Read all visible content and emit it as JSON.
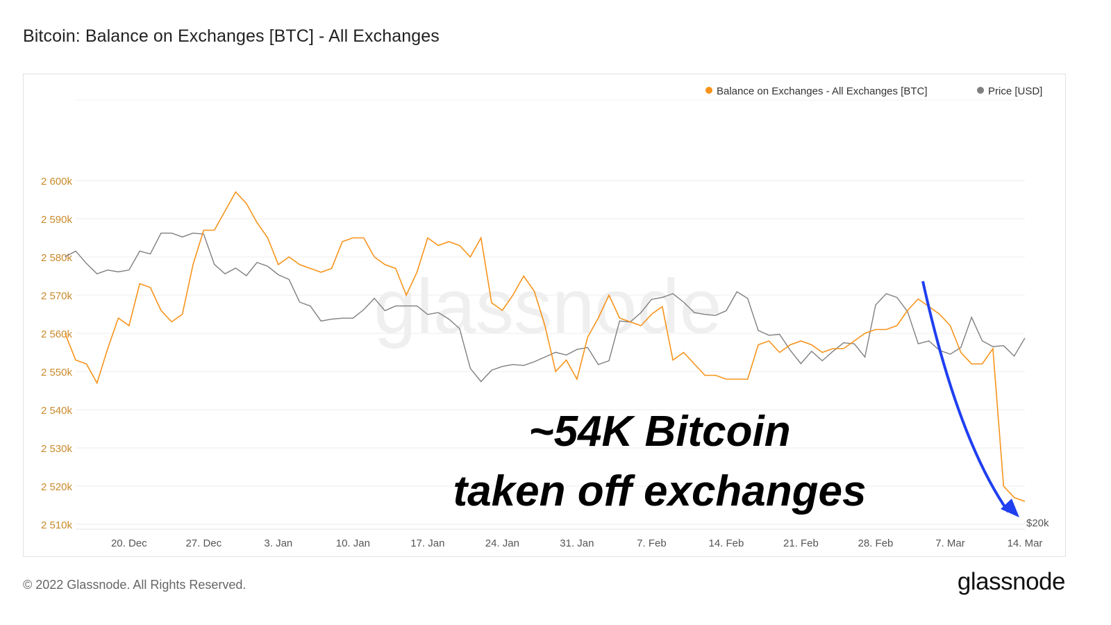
{
  "page": {
    "title": "Bitcoin: Balance on Exchanges [BTC] - All Exchanges",
    "footer_copyright": "© 2022 Glassnode. All Rights Reserved.",
    "footer_logo": "glassnode",
    "watermark": "glassnode"
  },
  "chart_data": {
    "type": "line",
    "title": "Bitcoin: Balance on Exchanges [BTC] - All Exchanges",
    "x_ticks": [
      "20. Dec",
      "27. Dec",
      "3. Jan",
      "10. Jan",
      "17. Jan",
      "24. Jan",
      "31. Jan",
      "7. Feb",
      "14. Feb",
      "21. Feb",
      "28. Feb",
      "7. Mar",
      "14. Mar"
    ],
    "y_ticks": [
      "2 510k",
      "2 520k",
      "2 530k",
      "2 540k",
      "2 550k",
      "2 560k",
      "2 570k",
      "2 580k",
      "2 590k",
      "2 600k"
    ],
    "y_right_label": "$20k",
    "ylim": [
      2510000,
      2610000
    ],
    "grid": true,
    "legend_position": "top-right",
    "x_start": "2021-12-15",
    "x_end": "2022-03-14",
    "annotation": {
      "line1": "~54K Bitcoin",
      "line2": "taken off exchanges"
    },
    "colors": {
      "balance": "#f7931a",
      "price": "#7f7f7f",
      "arrow": "#1f3ff0",
      "axis_text": "#c98a2b"
    },
    "series": [
      {
        "name": "Balance on Exchanges - All Exchanges [BTC]",
        "axis": "left",
        "points": [
          [
            "2021-12-14",
            2560000
          ],
          [
            "2021-12-15",
            2553000
          ],
          [
            "2021-12-16",
            2552000
          ],
          [
            "2021-12-17",
            2547000
          ],
          [
            "2021-12-18",
            2556000
          ],
          [
            "2021-12-19",
            2564000
          ],
          [
            "2021-12-20",
            2562000
          ],
          [
            "2021-12-21",
            2573000
          ],
          [
            "2021-12-22",
            2572000
          ],
          [
            "2021-12-23",
            2566000
          ],
          [
            "2021-12-24",
            2563000
          ],
          [
            "2021-12-25",
            2565000
          ],
          [
            "2021-12-26",
            2578000
          ],
          [
            "2021-12-27",
            2587000
          ],
          [
            "2021-12-28",
            2587000
          ],
          [
            "2021-12-29",
            2592000
          ],
          [
            "2021-12-30",
            2597000
          ],
          [
            "2021-12-31",
            2594000
          ],
          [
            "2022-01-01",
            2589000
          ],
          [
            "2022-01-02",
            2585000
          ],
          [
            "2022-01-03",
            2578000
          ],
          [
            "2022-01-04",
            2580000
          ],
          [
            "2022-01-05",
            2578000
          ],
          [
            "2022-01-06",
            2577000
          ],
          [
            "2022-01-07",
            2576000
          ],
          [
            "2022-01-08",
            2577000
          ],
          [
            "2022-01-09",
            2584000
          ],
          [
            "2022-01-10",
            2585000
          ],
          [
            "2022-01-11",
            2585000
          ],
          [
            "2022-01-12",
            2580000
          ],
          [
            "2022-01-13",
            2578000
          ],
          [
            "2022-01-14",
            2577000
          ],
          [
            "2022-01-15",
            2570000
          ],
          [
            "2022-01-16",
            2576000
          ],
          [
            "2022-01-17",
            2585000
          ],
          [
            "2022-01-18",
            2583000
          ],
          [
            "2022-01-19",
            2584000
          ],
          [
            "2022-01-20",
            2583000
          ],
          [
            "2022-01-21",
            2580000
          ],
          [
            "2022-01-22",
            2585000
          ],
          [
            "2022-01-23",
            2568000
          ],
          [
            "2022-01-24",
            2566000
          ],
          [
            "2022-01-25",
            2570000
          ],
          [
            "2022-01-26",
            2575000
          ],
          [
            "2022-01-27",
            2571000
          ],
          [
            "2022-01-28",
            2562000
          ],
          [
            "2022-01-29",
            2550000
          ],
          [
            "2022-01-30",
            2553000
          ],
          [
            "2022-01-31",
            2548000
          ],
          [
            "2022-02-01",
            2559000
          ],
          [
            "2022-02-02",
            2564000
          ],
          [
            "2022-02-03",
            2570000
          ],
          [
            "2022-02-04",
            2564000
          ],
          [
            "2022-02-05",
            2563000
          ],
          [
            "2022-02-06",
            2562000
          ],
          [
            "2022-02-07",
            2565000
          ],
          [
            "2022-02-08",
            2567000
          ],
          [
            "2022-02-09",
            2553000
          ],
          [
            "2022-02-10",
            2555000
          ],
          [
            "2022-02-11",
            2552000
          ],
          [
            "2022-02-12",
            2549000
          ],
          [
            "2022-02-13",
            2549000
          ],
          [
            "2022-02-14",
            2548000
          ],
          [
            "2022-02-15",
            2548000
          ],
          [
            "2022-02-16",
            2548000
          ],
          [
            "2022-02-17",
            2557000
          ],
          [
            "2022-02-18",
            2558000
          ],
          [
            "2022-02-19",
            2555000
          ],
          [
            "2022-02-20",
            2557000
          ],
          [
            "2022-02-21",
            2558000
          ],
          [
            "2022-02-22",
            2557000
          ],
          [
            "2022-02-23",
            2555000
          ],
          [
            "2022-02-24",
            2556000
          ],
          [
            "2022-02-25",
            2556000
          ],
          [
            "2022-02-26",
            2558000
          ],
          [
            "2022-02-27",
            2560000
          ],
          [
            "2022-02-28",
            2561000
          ],
          [
            "2022-03-01",
            2561000
          ],
          [
            "2022-03-02",
            2562000
          ],
          [
            "2022-03-03",
            2566000
          ],
          [
            "2022-03-04",
            2569000
          ],
          [
            "2022-03-05",
            2567000
          ],
          [
            "2022-03-06",
            2565000
          ],
          [
            "2022-03-07",
            2562000
          ],
          [
            "2022-03-08",
            2555000
          ],
          [
            "2022-03-09",
            2552000
          ],
          [
            "2022-03-10",
            2552000
          ],
          [
            "2022-03-11",
            2556000
          ],
          [
            "2022-03-12",
            2520000
          ],
          [
            "2022-03-13",
            2517000
          ],
          [
            "2022-03-14",
            2516000
          ]
        ]
      },
      {
        "name": "Price [USD]",
        "axis": "right",
        "points": [
          [
            "2021-12-14",
            48300
          ],
          [
            "2021-12-15",
            48900
          ],
          [
            "2021-12-16",
            47600
          ],
          [
            "2021-12-17",
            46500
          ],
          [
            "2021-12-18",
            46900
          ],
          [
            "2021-12-19",
            46700
          ],
          [
            "2021-12-20",
            46900
          ],
          [
            "2021-12-21",
            48900
          ],
          [
            "2021-12-22",
            48600
          ],
          [
            "2021-12-23",
            50800
          ],
          [
            "2021-12-24",
            50800
          ],
          [
            "2021-12-25",
            50400
          ],
          [
            "2021-12-26",
            50800
          ],
          [
            "2021-12-27",
            50700
          ],
          [
            "2021-12-28",
            47500
          ],
          [
            "2021-12-29",
            46500
          ],
          [
            "2021-12-30",
            47100
          ],
          [
            "2021-12-31",
            46300
          ],
          [
            "2022-01-01",
            47700
          ],
          [
            "2022-01-02",
            47300
          ],
          [
            "2022-01-03",
            46400
          ],
          [
            "2022-01-04",
            45900
          ],
          [
            "2022-01-05",
            43500
          ],
          [
            "2022-01-06",
            43100
          ],
          [
            "2022-01-07",
            41500
          ],
          [
            "2022-01-08",
            41700
          ],
          [
            "2022-01-09",
            41800
          ],
          [
            "2022-01-10",
            41800
          ],
          [
            "2022-01-11",
            42700
          ],
          [
            "2022-01-12",
            43900
          ],
          [
            "2022-01-13",
            42600
          ],
          [
            "2022-01-14",
            43100
          ],
          [
            "2022-01-15",
            43100
          ],
          [
            "2022-01-16",
            43100
          ],
          [
            "2022-01-17",
            42200
          ],
          [
            "2022-01-18",
            42400
          ],
          [
            "2022-01-19",
            41700
          ],
          [
            "2022-01-20",
            40700
          ],
          [
            "2022-01-21",
            36500
          ],
          [
            "2022-01-22",
            35100
          ],
          [
            "2022-01-23",
            36300
          ],
          [
            "2022-01-24",
            36700
          ],
          [
            "2022-01-25",
            36900
          ],
          [
            "2022-01-26",
            36800
          ],
          [
            "2022-01-27",
            37200
          ],
          [
            "2022-01-28",
            37700
          ],
          [
            "2022-01-29",
            38200
          ],
          [
            "2022-01-30",
            37900
          ],
          [
            "2022-01-31",
            38500
          ],
          [
            "2022-02-01",
            38700
          ],
          [
            "2022-02-02",
            36900
          ],
          [
            "2022-02-03",
            37300
          ],
          [
            "2022-02-04",
            41500
          ],
          [
            "2022-02-05",
            41400
          ],
          [
            "2022-02-06",
            42400
          ],
          [
            "2022-02-07",
            43800
          ],
          [
            "2022-02-08",
            44000
          ],
          [
            "2022-02-09",
            44400
          ],
          [
            "2022-02-10",
            43500
          ],
          [
            "2022-02-11",
            42400
          ],
          [
            "2022-02-12",
            42200
          ],
          [
            "2022-02-13",
            42100
          ],
          [
            "2022-02-14",
            42600
          ],
          [
            "2022-02-15",
            44600
          ],
          [
            "2022-02-16",
            43900
          ],
          [
            "2022-02-17",
            40500
          ],
          [
            "2022-02-18",
            40000
          ],
          [
            "2022-02-19",
            40100
          ],
          [
            "2022-02-20",
            38400
          ],
          [
            "2022-02-21",
            37000
          ],
          [
            "2022-02-22",
            38300
          ],
          [
            "2022-02-23",
            37300
          ],
          [
            "2022-02-24",
            38300
          ],
          [
            "2022-02-25",
            39200
          ],
          [
            "2022-02-26",
            39100
          ],
          [
            "2022-02-27",
            37700
          ],
          [
            "2022-02-28",
            43200
          ],
          [
            "2022-03-01",
            44400
          ],
          [
            "2022-03-02",
            44000
          ],
          [
            "2022-03-03",
            42500
          ],
          [
            "2022-03-04",
            39100
          ],
          [
            "2022-03-05",
            39400
          ],
          [
            "2022-03-06",
            38400
          ],
          [
            "2022-03-07",
            38000
          ],
          [
            "2022-03-08",
            38700
          ],
          [
            "2022-03-09",
            41900
          ],
          [
            "2022-03-10",
            39400
          ],
          [
            "2022-03-11",
            38800
          ],
          [
            "2022-03-12",
            38900
          ],
          [
            "2022-03-13",
            37800
          ],
          [
            "2022-03-14",
            39700
          ]
        ]
      }
    ]
  }
}
